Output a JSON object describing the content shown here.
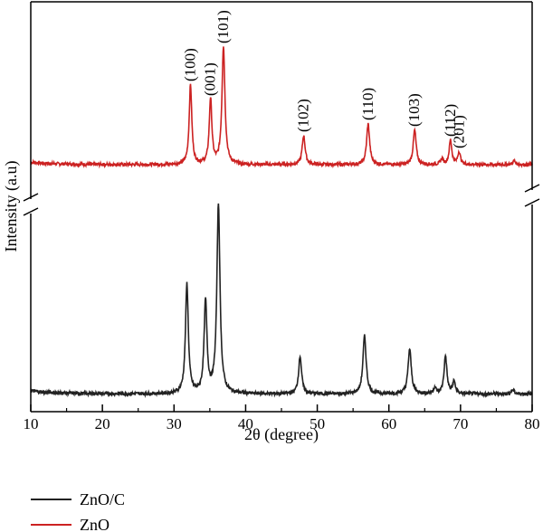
{
  "chart_data": {
    "type": "line",
    "xlabel": "2θ (degree)",
    "ylabel": "Intensity (a.u)",
    "xlim": [
      10,
      80
    ],
    "xticks": [
      "10",
      "20",
      "30",
      "40",
      "50",
      "60",
      "70",
      "80"
    ],
    "y_axis_break": true,
    "grid": false,
    "legend_position": "bottom-left",
    "series": [
      {
        "name": "ZnO",
        "color": "#cc2222",
        "baseline": 0.05,
        "peaks": [
          {
            "x": 32.3,
            "height": 0.88,
            "width": 0.22,
            "label": "(100)"
          },
          {
            "x": 35.1,
            "height": 0.72,
            "width": 0.22,
            "label": "(001)"
          },
          {
            "x": 36.9,
            "height": 1.3,
            "width": 0.25,
            "label": "(101)"
          },
          {
            "x": 48.1,
            "height": 0.32,
            "width": 0.25,
            "label": "(102)"
          },
          {
            "x": 57.1,
            "height": 0.45,
            "width": 0.25,
            "label": "(110)"
          },
          {
            "x": 63.6,
            "height": 0.38,
            "width": 0.25,
            "label": "(103)"
          },
          {
            "x": 67.4,
            "height": 0.06,
            "width": 0.22,
            "label": ""
          },
          {
            "x": 68.6,
            "height": 0.27,
            "width": 0.22,
            "label": "(112)"
          },
          {
            "x": 69.8,
            "height": 0.14,
            "width": 0.22,
            "label": "(201)"
          },
          {
            "x": 77.5,
            "height": 0.04,
            "width": 0.25,
            "label": ""
          }
        ]
      },
      {
        "name": "ZnO/C",
        "color": "#222222",
        "baseline": 0.06,
        "peaks": [
          {
            "x": 31.8,
            "height": 1.1,
            "width": 0.24,
            "label": ""
          },
          {
            "x": 34.4,
            "height": 0.92,
            "width": 0.24,
            "label": ""
          },
          {
            "x": 36.2,
            "height": 1.9,
            "width": 0.26,
            "label": ""
          },
          {
            "x": 47.6,
            "height": 0.38,
            "width": 0.25,
            "label": ""
          },
          {
            "x": 56.6,
            "height": 0.58,
            "width": 0.27,
            "label": ""
          },
          {
            "x": 62.9,
            "height": 0.45,
            "width": 0.27,
            "label": ""
          },
          {
            "x": 66.4,
            "height": 0.06,
            "width": 0.22,
            "label": ""
          },
          {
            "x": 67.9,
            "height": 0.38,
            "width": 0.24,
            "label": ""
          },
          {
            "x": 69.1,
            "height": 0.12,
            "width": 0.22,
            "label": ""
          },
          {
            "x": 77.3,
            "height": 0.04,
            "width": 0.25,
            "label": ""
          }
        ]
      }
    ]
  }
}
